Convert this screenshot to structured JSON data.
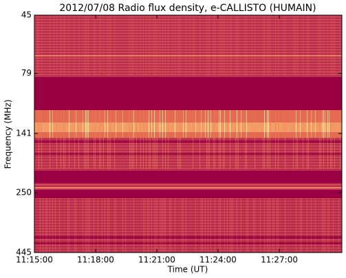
{
  "chart_data": {
    "type": "spectrogram",
    "title": "2012/07/08  Radio flux density, e-CALLISTO (HUMAIN)",
    "x_label": "Time (UT)",
    "y_label": "Frequency (MHz)",
    "xlim": [
      40500,
      41404
    ],
    "xticks": [
      {
        "value": 40500,
        "label": "11:15:00"
      },
      {
        "value": 40680,
        "label": "11:18:00"
      },
      {
        "value": 40860,
        "label": "11:21:00"
      },
      {
        "value": 41040,
        "label": "11:24:00"
      },
      {
        "value": 41220,
        "label": "11:27:00"
      }
    ],
    "ylim": [
      445,
      45
    ],
    "yticks": [
      45,
      79,
      141,
      250,
      445
    ],
    "y_scale": "log"
  }
}
